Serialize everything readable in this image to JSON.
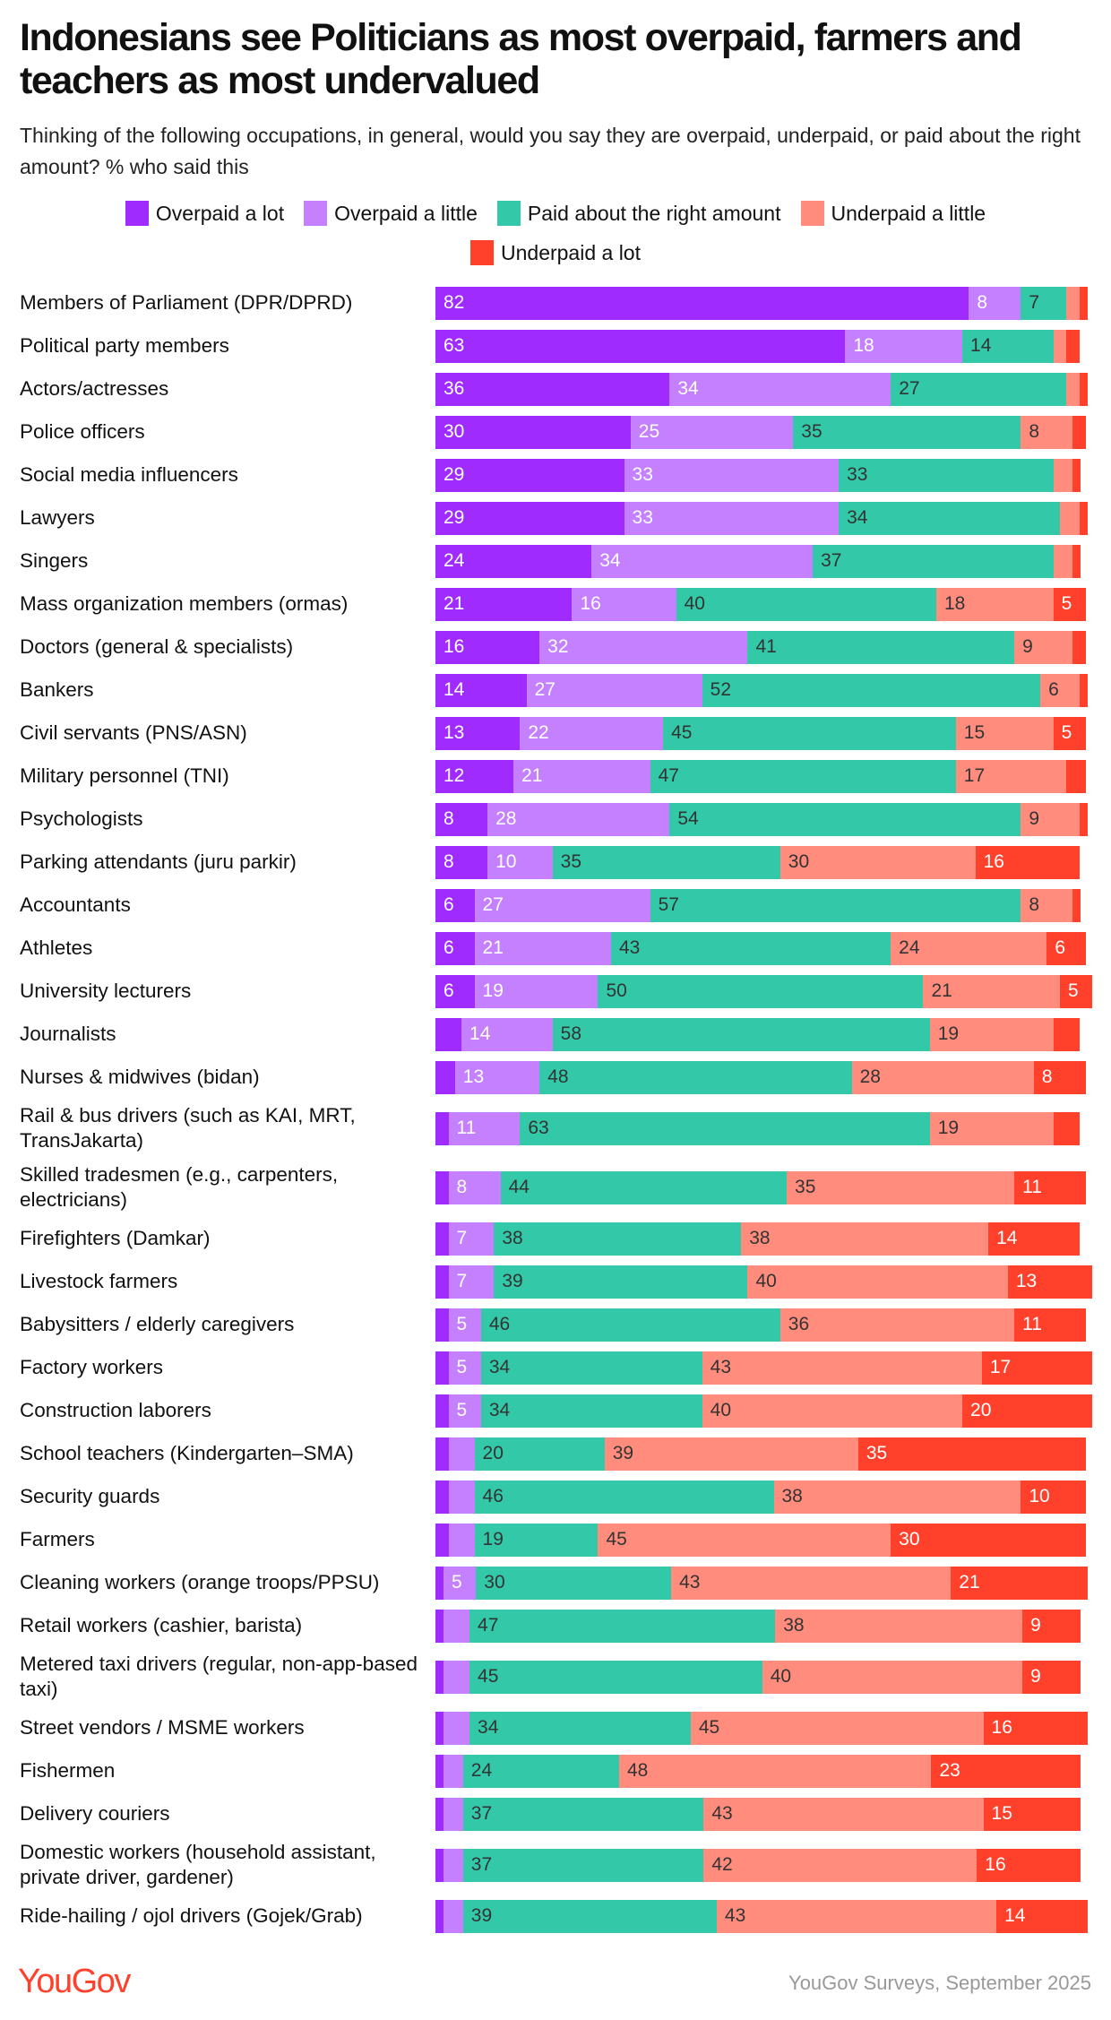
{
  "title": "Indonesians see Politicians as most overpaid, farmers and teachers as most undervalued",
  "subtitle": "Thinking of the following occupations, in general, would you say they are overpaid, underpaid, or paid about the right amount? % who said this",
  "footer": {
    "logo": "YouGov",
    "source": "YouGov Surveys, September 2025"
  },
  "chart_data": {
    "type": "bar",
    "orientation": "horizontal-stacked-100",
    "xlim": [
      0,
      100
    ],
    "legend_position": "top",
    "series": [
      {
        "name": "Overpaid a lot",
        "color": "#a02bff",
        "text_color": "#ffffff"
      },
      {
        "name": "Overpaid a little",
        "color": "#c580ff",
        "text_color": "#ffffff"
      },
      {
        "name": "Paid about the right amount",
        "color": "#32c8a8",
        "text_color": "#333333"
      },
      {
        "name": "Underpaid a little",
        "color": "#ff8c7d",
        "text_color": "#333333"
      },
      {
        "name": "Underpaid a lot",
        "color": "#ff412c",
        "text_color": "#ffffff"
      }
    ],
    "categories": [
      {
        "label": "Members of Parliament (DPR/DPRD)",
        "values": [
          82,
          8,
          7,
          2,
          1
        ]
      },
      {
        "label": "Political party members",
        "values": [
          63,
          18,
          14,
          2,
          2
        ]
      },
      {
        "label": "Actors/actresses",
        "values": [
          36,
          34,
          27,
          2,
          1
        ]
      },
      {
        "label": "Police officers",
        "values": [
          30,
          25,
          35,
          8,
          2
        ]
      },
      {
        "label": "Social media influencers",
        "values": [
          29,
          33,
          33,
          3,
          1
        ]
      },
      {
        "label": "Lawyers",
        "values": [
          29,
          33,
          34,
          3,
          1
        ]
      },
      {
        "label": "Singers",
        "values": [
          24,
          34,
          37,
          3,
          1
        ]
      },
      {
        "label": "Mass organization members (ormas)",
        "values": [
          21,
          16,
          40,
          18,
          5
        ]
      },
      {
        "label": "Doctors (general & specialists)",
        "values": [
          16,
          32,
          41,
          9,
          2
        ]
      },
      {
        "label": "Bankers",
        "values": [
          14,
          27,
          52,
          6,
          1
        ]
      },
      {
        "label": "Civil servants (PNS/ASN)",
        "values": [
          13,
          22,
          45,
          15,
          5
        ]
      },
      {
        "label": "Military personnel (TNI)",
        "values": [
          12,
          21,
          47,
          17,
          3
        ]
      },
      {
        "label": "Psychologists",
        "values": [
          8,
          28,
          54,
          9,
          1
        ]
      },
      {
        "label": "Parking attendants (juru parkir)",
        "values": [
          8,
          10,
          35,
          30,
          16
        ]
      },
      {
        "label": "Accountants",
        "values": [
          6,
          27,
          57,
          8,
          1
        ]
      },
      {
        "label": "Athletes",
        "values": [
          6,
          21,
          43,
          24,
          6
        ]
      },
      {
        "label": "University lecturers",
        "values": [
          6,
          19,
          50,
          21,
          5
        ]
      },
      {
        "label": "Journalists",
        "values": [
          4,
          14,
          58,
          19,
          4
        ]
      },
      {
        "label": "Nurses & midwives (bidan)",
        "values": [
          3,
          13,
          48,
          28,
          8
        ]
      },
      {
        "label": "Rail & bus drivers (such as KAI, MRT, TransJakarta)",
        "values": [
          2,
          11,
          63,
          19,
          4
        ],
        "two_line": true
      },
      {
        "label": "Skilled tradesmen (e.g., carpenters, electricians)",
        "values": [
          2,
          8,
          44,
          35,
          11
        ],
        "two_line": true
      },
      {
        "label": "Firefighters (Damkar)",
        "values": [
          2,
          7,
          38,
          38,
          14
        ]
      },
      {
        "label": "Livestock farmers",
        "values": [
          2,
          7,
          39,
          40,
          13
        ]
      },
      {
        "label": "Babysitters / elderly caregivers",
        "values": [
          2,
          5,
          46,
          36,
          11
        ]
      },
      {
        "label": "Factory workers",
        "values": [
          2,
          5,
          34,
          43,
          17
        ]
      },
      {
        "label": "Construction laborers",
        "values": [
          2,
          5,
          34,
          40,
          20
        ]
      },
      {
        "label": "School teachers (Kindergarten–SMA)",
        "values": [
          2,
          4,
          20,
          39,
          35
        ]
      },
      {
        "label": "Security guards",
        "values": [
          2,
          4,
          46,
          38,
          10
        ]
      },
      {
        "label": "Farmers",
        "values": [
          2,
          4,
          19,
          45,
          30
        ]
      },
      {
        "label": "Cleaning workers (orange troops/PPSU)",
        "values": [
          1,
          5,
          30,
          43,
          21
        ]
      },
      {
        "label": "Retail workers (cashier, barista)",
        "values": [
          1,
          4,
          47,
          38,
          9
        ]
      },
      {
        "label": "Metered taxi drivers (regular, non-app-based taxi)",
        "values": [
          1,
          4,
          45,
          40,
          9
        ],
        "two_line": true
      },
      {
        "label": "Street vendors / MSME workers",
        "values": [
          1,
          4,
          34,
          45,
          16
        ]
      },
      {
        "label": "Fishermen",
        "values": [
          1,
          3,
          24,
          48,
          23
        ]
      },
      {
        "label": "Delivery couriers",
        "values": [
          1,
          3,
          37,
          43,
          15
        ]
      },
      {
        "label": "Domestic workers (household assistant, private driver, gardener)",
        "values": [
          1,
          3,
          37,
          42,
          16
        ],
        "two_line": true
      },
      {
        "label": "Ride-hailing / ojol drivers (Gojek/Grab)",
        "values": [
          1,
          3,
          39,
          43,
          14
        ]
      }
    ]
  }
}
